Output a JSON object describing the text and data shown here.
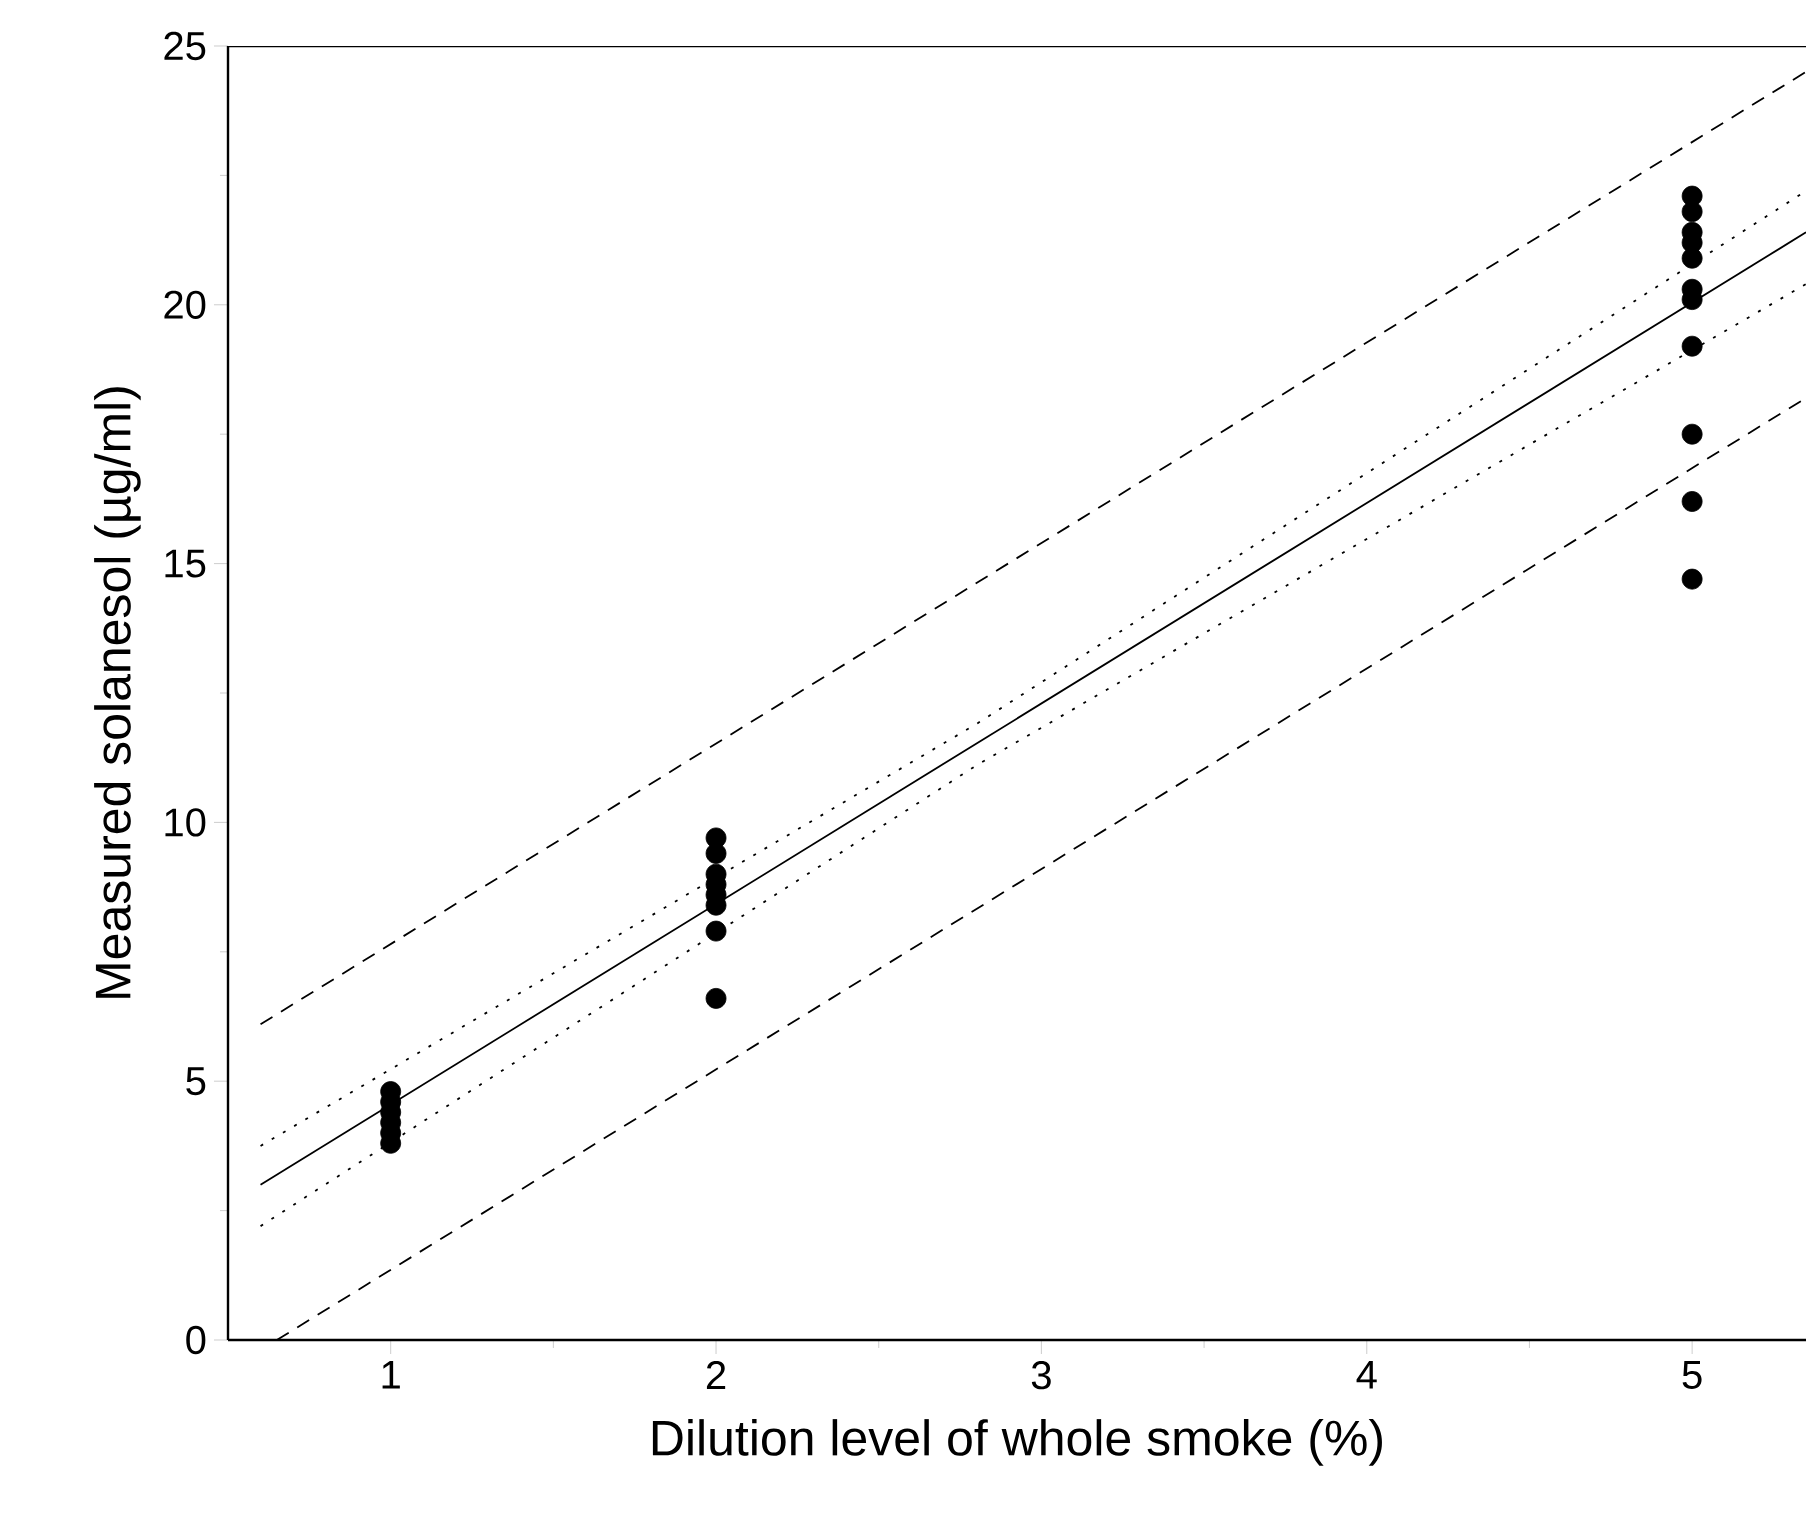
{
  "chart_data": {
    "type": "scatter",
    "xlabel": "Dilution level of whole smoke (%)",
    "ylabel": "Measured solanesol (µg/ml)",
    "xlim": [
      0.5,
      5.35
    ],
    "ylim": [
      0,
      25
    ],
    "xticks": [
      1,
      2,
      3,
      4,
      5
    ],
    "yticks": [
      0,
      5,
      10,
      15,
      20,
      25
    ],
    "grid": false,
    "series": [
      {
        "color": "#000000",
        "marker": "circle",
        "x": [
          1,
          1,
          1,
          1,
          1,
          1,
          2,
          2,
          2,
          2,
          2,
          2,
          2,
          2,
          5,
          5,
          5,
          5,
          5,
          5,
          5,
          5,
          5,
          5,
          5
        ],
        "values": [
          4.8,
          4.6,
          4.4,
          4.2,
          4.0,
          3.8,
          9.7,
          9.4,
          9.0,
          8.8,
          8.6,
          8.4,
          7.9,
          6.6,
          22.1,
          21.8,
          21.4,
          21.2,
          20.9,
          20.3,
          20.1,
          19.2,
          17.5,
          16.2,
          14.7
        ]
      },
      {
        "type": "line",
        "color": "#000000",
        "marker": "none",
        "line_style": "solid",
        "x": [
          0.6,
          5.35
        ],
        "values": [
          3.0,
          21.4
        ]
      },
      {
        "type": "line",
        "color": "#000000",
        "marker": "none",
        "line_style": "dotted",
        "x": [
          0.6,
          2.8,
          5.35
        ],
        "values": [
          3.75,
          11.9,
          22.2
        ]
      },
      {
        "type": "line",
        "color": "#000000",
        "marker": "none",
        "line_style": "dotted",
        "x": [
          0.6,
          2.8,
          5.35
        ],
        "values": [
          2.2,
          11.1,
          20.4
        ]
      },
      {
        "type": "line",
        "color": "#000000",
        "marker": "none",
        "line_style": "dashed",
        "x": [
          0.6,
          5.35
        ],
        "values": [
          6.1,
          24.5
        ]
      },
      {
        "type": "line",
        "color": "#000000",
        "marker": "none",
        "line_style": "dashed",
        "x": [
          0.65,
          5.35
        ],
        "values": [
          0,
          18.2
        ]
      }
    ]
  }
}
